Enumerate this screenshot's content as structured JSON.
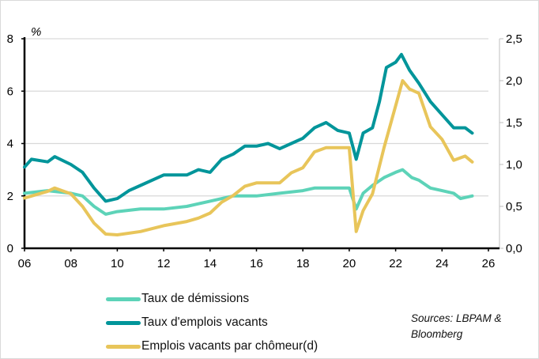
{
  "chart_data": {
    "type": "line",
    "title": "",
    "y_left_unit": "%",
    "xlim": [
      2006,
      2026
    ],
    "ylim_left": [
      0,
      8
    ],
    "ylim_right": [
      0,
      2.5
    ],
    "x_ticks": [
      "06",
      "08",
      "10",
      "12",
      "14",
      "16",
      "18",
      "20",
      "22",
      "24",
      "26"
    ],
    "x_tick_values": [
      2006,
      2008,
      2010,
      2012,
      2014,
      2016,
      2018,
      2020,
      2022,
      2024,
      2026
    ],
    "y_left_ticks": [
      "0",
      "2",
      "4",
      "6",
      "8"
    ],
    "y_left_tick_values": [
      0,
      2,
      4,
      6,
      8
    ],
    "y_right_ticks": [
      "0,0",
      "0,5",
      "1,0",
      "1,5",
      "2,0",
      "2,5"
    ],
    "y_right_tick_values": [
      0,
      0.5,
      1,
      1.5,
      2,
      2.5
    ],
    "grid": true,
    "legend_placement": "bottom-left",
    "series": [
      {
        "name": "Taux de démissions",
        "axis": "left",
        "color": "#5dd3b8",
        "x": [
          2006,
          2007,
          2008,
          2008.5,
          2009,
          2009.5,
          2010,
          2011,
          2012,
          2013,
          2013.5,
          2014,
          2015,
          2016,
          2017,
          2018,
          2018.5,
          2019,
          2020,
          2020.3,
          2020.6,
          2021,
          2021.5,
          2022,
          2022.3,
          2022.7,
          2023,
          2023.5,
          2024,
          2024.5,
          2024.8,
          2025.3
        ],
        "y": [
          2.1,
          2.2,
          2.1,
          2.0,
          1.6,
          1.3,
          1.4,
          1.5,
          1.5,
          1.6,
          1.7,
          1.8,
          2.0,
          2.0,
          2.1,
          2.2,
          2.3,
          2.3,
          2.3,
          1.5,
          2.1,
          2.4,
          2.7,
          2.9,
          3.0,
          2.7,
          2.6,
          2.3,
          2.2,
          2.1,
          1.9,
          2.0
        ]
      },
      {
        "name": "Taux d'emplois vacants",
        "axis": "left",
        "color": "#00959a",
        "x": [
          2006,
          2006.3,
          2007,
          2007.3,
          2008,
          2008.5,
          2009,
          2009.5,
          2010,
          2010.5,
          2011,
          2012,
          2013,
          2013.5,
          2014,
          2014.5,
          2015,
          2015.5,
          2016,
          2016.5,
          2017,
          2017.5,
          2018,
          2018.5,
          2019,
          2019.5,
          2020,
          2020.3,
          2020.6,
          2021,
          2021.3,
          2021.6,
          2022,
          2022.25,
          2022.6,
          2023,
          2023.5,
          2024,
          2024.5,
          2025,
          2025.3
        ],
        "y": [
          3.1,
          3.4,
          3.3,
          3.5,
          3.2,
          2.9,
          2.3,
          1.8,
          1.9,
          2.2,
          2.4,
          2.8,
          2.8,
          3.0,
          2.9,
          3.4,
          3.6,
          3.9,
          3.9,
          4.0,
          3.8,
          4.0,
          4.2,
          4.6,
          4.8,
          4.5,
          4.4,
          3.4,
          4.4,
          4.6,
          5.6,
          6.9,
          7.1,
          7.4,
          6.8,
          6.3,
          5.6,
          5.1,
          4.6,
          4.6,
          4.4
        ]
      },
      {
        "name": "Emplois vacants par chômeur(d)",
        "axis": "right",
        "color": "#e8c55a",
        "x": [
          2006,
          2007,
          2007.3,
          2008,
          2008.5,
          2009,
          2009.5,
          2010,
          2011,
          2012,
          2013,
          2013.5,
          2014,
          2014.5,
          2015,
          2015.5,
          2016,
          2017,
          2017.5,
          2018,
          2018.5,
          2019,
          2019.5,
          2020,
          2020.3,
          2020.6,
          2021,
          2021.5,
          2022,
          2022.3,
          2022.6,
          2023,
          2023.5,
          2024,
          2024.5,
          2025,
          2025.3
        ],
        "y": [
          0.6,
          0.68,
          0.72,
          0.65,
          0.5,
          0.3,
          0.17,
          0.16,
          0.2,
          0.27,
          0.32,
          0.36,
          0.42,
          0.55,
          0.63,
          0.74,
          0.78,
          0.78,
          0.9,
          0.96,
          1.15,
          1.2,
          1.2,
          1.2,
          0.2,
          0.45,
          0.65,
          1.2,
          1.7,
          2.0,
          1.9,
          1.85,
          1.45,
          1.3,
          1.05,
          1.1,
          1.03
        ]
      }
    ],
    "legend": [
      "Taux de démissions",
      "Taux d'emplois vacants",
      "Emplois vacants par chômeur(d)"
    ],
    "source": [
      "Sources: LBPAM &",
      "Bloomberg"
    ]
  }
}
